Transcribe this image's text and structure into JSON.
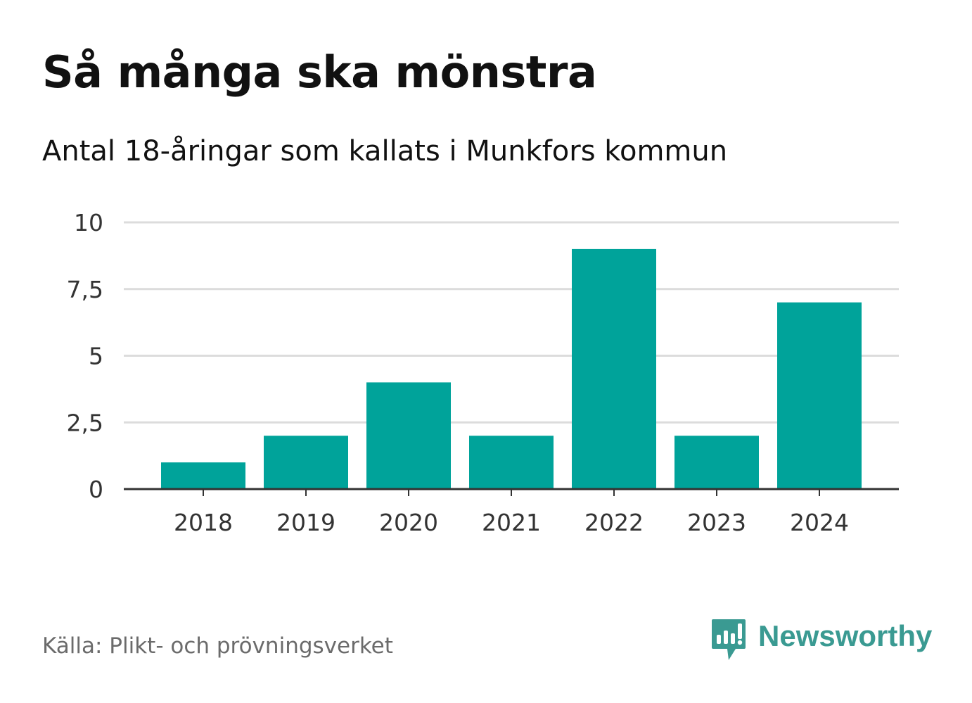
{
  "title": "Så många ska mönstra",
  "subtitle": "Antal 18-åringar som kallats i Munkfors kommun",
  "source": "Källa: Plikt- och prövningsverket",
  "brand": {
    "name": "Newsworthy",
    "icon": "newsworthy-logo-icon",
    "color": "#3a9a92"
  },
  "colors": {
    "bar": "#00a39a",
    "grid": "#dcdcdc",
    "axis": "#333333"
  },
  "chart_data": {
    "type": "bar",
    "title": "Så många ska mönstra",
    "subtitle": "Antal 18-åringar som kallats i Munkfors kommun",
    "categories": [
      "2018",
      "2019",
      "2020",
      "2021",
      "2022",
      "2023",
      "2024"
    ],
    "values": [
      1,
      2,
      4,
      2,
      9,
      2,
      7
    ],
    "xlabel": "",
    "ylabel": "",
    "ylim": [
      0,
      10
    ],
    "yticks": [
      0,
      2.5,
      5,
      7.5,
      10
    ],
    "ytick_labels": [
      "0",
      "2,5",
      "5",
      "7,5",
      "10"
    ],
    "grid": true,
    "legend": "none"
  }
}
